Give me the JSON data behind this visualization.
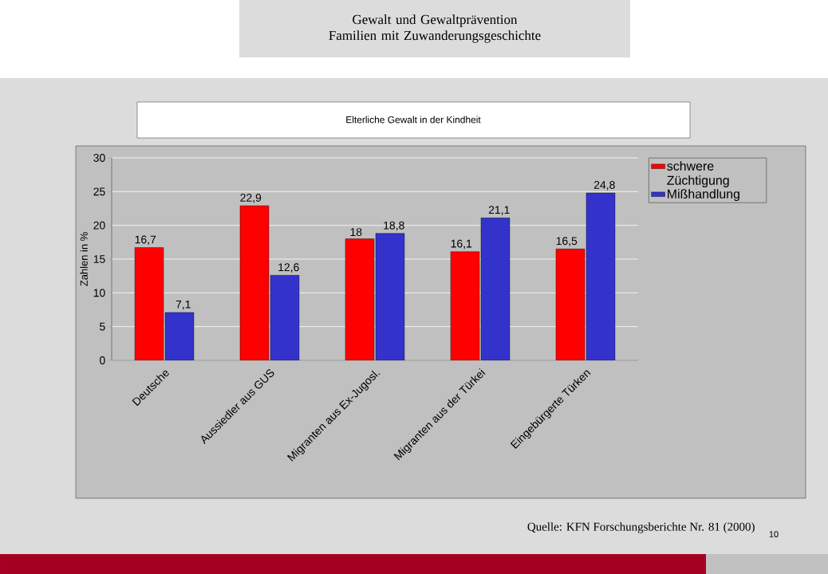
{
  "chart_data": {
    "type": "bar",
    "title": "Elterliche Gewalt in der Kindheit",
    "ylabel": "Zahlen in %",
    "categories": [
      "Deutsche",
      "Aussiedler aus GUS",
      "Migranten aus Ex-Jugosl.",
      "Migranten aus der Türkei",
      "Eingebürgerte Türken"
    ],
    "series": [
      {
        "name": "schwere Züchtigung",
        "color": "#ff0000",
        "values": [
          16.7,
          22.9,
          18,
          16.1,
          16.5
        ],
        "value_labels": [
          "16,7",
          "22,9",
          "18",
          "16,1",
          "16,5"
        ]
      },
      {
        "name": "Mißhandlung",
        "color": "#3333cc",
        "values": [
          7.1,
          12.6,
          18.8,
          21.1,
          24.8
        ],
        "value_labels": [
          "7,1",
          "12,6",
          "18,8",
          "21,1",
          "24,8"
        ]
      }
    ],
    "ylim": [
      0,
      30
    ],
    "yticks": [
      0,
      5,
      10,
      15,
      20,
      25,
      30
    ],
    "grid": "y",
    "legend": "top right",
    "annotations": [
      "Gewalt und Gewaltprävention Familien mit Zuwanderungsgeschichte",
      "Quelle: KFN Forschungsberichte Nr. 81 (2000)",
      "10"
    ]
  }
}
